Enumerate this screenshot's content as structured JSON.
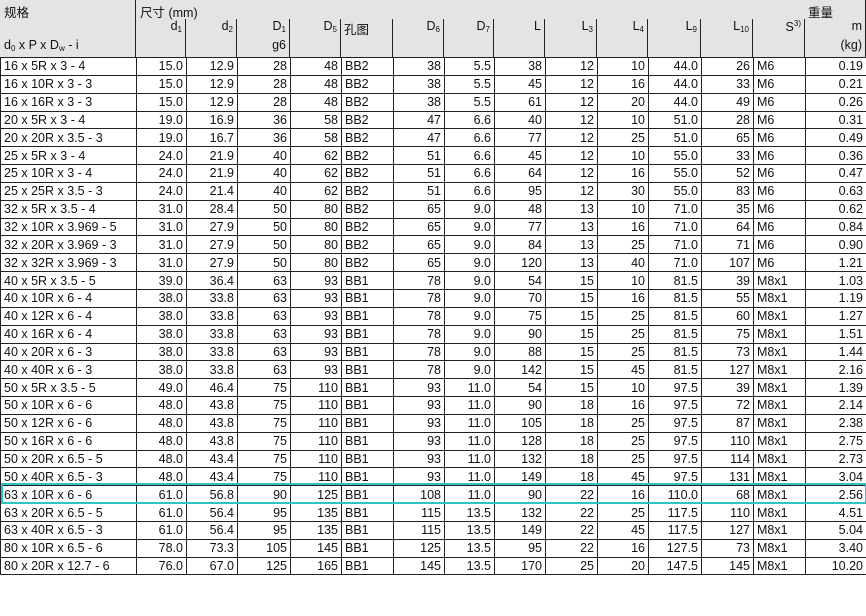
{
  "header": {
    "spec_group": "规格",
    "spec_formula": {
      "parts": [
        "d",
        "0",
        " x P x D",
        "w",
        " - i"
      ]
    },
    "dim_group": "尺寸 (mm)",
    "weight_group": "重量",
    "columns": [
      {
        "label": "d",
        "sub": "1"
      },
      {
        "label": "d",
        "sub": "2"
      },
      {
        "label": "D",
        "sub": "1",
        "below": "g6"
      },
      {
        "label": "D",
        "sub": "5"
      },
      {
        "label": "孔图",
        "left": true
      },
      {
        "label": "D",
        "sub": "6"
      },
      {
        "label": "D",
        "sub": "7"
      },
      {
        "label": "L"
      },
      {
        "label": "L",
        "sub": "3"
      },
      {
        "label": "L",
        "sub": "4"
      },
      {
        "label": "L",
        "sub": "9"
      },
      {
        "label": "L",
        "sub": "10"
      },
      {
        "label": "S",
        "sup": "3)"
      },
      {
        "label": "m",
        "below": "(kg)"
      }
    ]
  },
  "highlight_color": "#2ec4c4",
  "highlighted_row": "63 x 10R x 6 - 6",
  "rows": [
    [
      "16 x 5R x 3 - 4",
      "15.0",
      "12.9",
      "28",
      "48",
      "BB2",
      "38",
      "5.5",
      "38",
      "12",
      "10",
      "44.0",
      "26",
      "M6",
      "0.19"
    ],
    [
      "16 x 10R x 3 - 3",
      "15.0",
      "12.9",
      "28",
      "48",
      "BB2",
      "38",
      "5.5",
      "45",
      "12",
      "16",
      "44.0",
      "33",
      "M6",
      "0.21"
    ],
    [
      "16 x 16R x 3 - 3",
      "15.0",
      "12.9",
      "28",
      "48",
      "BB2",
      "38",
      "5.5",
      "61",
      "12",
      "20",
      "44.0",
      "49",
      "M6",
      "0.26"
    ],
    [
      "20 x 5R x 3 - 4",
      "19.0",
      "16.9",
      "36",
      "58",
      "BB2",
      "47",
      "6.6",
      "40",
      "12",
      "10",
      "51.0",
      "28",
      "M6",
      "0.31"
    ],
    [
      "20 x 20R x 3.5 - 3",
      "19.0",
      "16.7",
      "36",
      "58",
      "BB2",
      "47",
      "6.6",
      "77",
      "12",
      "25",
      "51.0",
      "65",
      "M6",
      "0.49"
    ],
    [
      "25 x 5R x 3 - 4",
      "24.0",
      "21.9",
      "40",
      "62",
      "BB2",
      "51",
      "6.6",
      "45",
      "12",
      "10",
      "55.0",
      "33",
      "M6",
      "0.36"
    ],
    [
      "25 x 10R x 3 - 4",
      "24.0",
      "21.9",
      "40",
      "62",
      "BB2",
      "51",
      "6.6",
      "64",
      "12",
      "16",
      "55.0",
      "52",
      "M6",
      "0.47"
    ],
    [
      "25 x 25R x 3.5 - 3",
      "24.0",
      "21.4",
      "40",
      "62",
      "BB2",
      "51",
      "6.6",
      "95",
      "12",
      "30",
      "55.0",
      "83",
      "M6",
      "0.63"
    ],
    [
      "32 x 5R x 3.5 - 4",
      "31.0",
      "28.4",
      "50",
      "80",
      "BB2",
      "65",
      "9.0",
      "48",
      "13",
      "10",
      "71.0",
      "35",
      "M6",
      "0.62"
    ],
    [
      "32 x 10R x 3.969 - 5",
      "31.0",
      "27.9",
      "50",
      "80",
      "BB2",
      "65",
      "9.0",
      "77",
      "13",
      "16",
      "71.0",
      "64",
      "M6",
      "0.84"
    ],
    [
      "32 x 20R x 3.969 - 3",
      "31.0",
      "27.9",
      "50",
      "80",
      "BB2",
      "65",
      "9.0",
      "84",
      "13",
      "25",
      "71.0",
      "71",
      "M6",
      "0.90"
    ],
    [
      "32 x 32R x 3.969 - 3",
      "31.0",
      "27.9",
      "50",
      "80",
      "BB2",
      "65",
      "9.0",
      "120",
      "13",
      "40",
      "71.0",
      "107",
      "M6",
      "1.21"
    ],
    [
      "40 x 5R x 3.5 - 5",
      "39.0",
      "36.4",
      "63",
      "93",
      "BB1",
      "78",
      "9.0",
      "54",
      "15",
      "10",
      "81.5",
      "39",
      "M8x1",
      "1.03"
    ],
    [
      "40 x 10R x 6 - 4",
      "38.0",
      "33.8",
      "63",
      "93",
      "BB1",
      "78",
      "9.0",
      "70",
      "15",
      "16",
      "81.5",
      "55",
      "M8x1",
      "1.19"
    ],
    [
      "40 x 12R x 6 - 4",
      "38.0",
      "33.8",
      "63",
      "93",
      "BB1",
      "78",
      "9.0",
      "75",
      "15",
      "25",
      "81.5",
      "60",
      "M8x1",
      "1.27"
    ],
    [
      "40 x 16R x 6 - 4",
      "38.0",
      "33.8",
      "63",
      "93",
      "BB1",
      "78",
      "9.0",
      "90",
      "15",
      "25",
      "81.5",
      "75",
      "M8x1",
      "1.51"
    ],
    [
      "40 x 20R x 6 - 3",
      "38.0",
      "33.8",
      "63",
      "93",
      "BB1",
      "78",
      "9.0",
      "88",
      "15",
      "25",
      "81.5",
      "73",
      "M8x1",
      "1.44"
    ],
    [
      "40 x 40R x 6 - 3",
      "38.0",
      "33.8",
      "63",
      "93",
      "BB1",
      "78",
      "9.0",
      "142",
      "15",
      "45",
      "81.5",
      "127",
      "M8x1",
      "2.16"
    ],
    [
      "50 x 5R x 3.5 - 5",
      "49.0",
      "46.4",
      "75",
      "110",
      "BB1",
      "93",
      "11.0",
      "54",
      "15",
      "10",
      "97.5",
      "39",
      "M8x1",
      "1.39"
    ],
    [
      "50 x 10R x 6 - 6",
      "48.0",
      "43.8",
      "75",
      "110",
      "BB1",
      "93",
      "11.0",
      "90",
      "18",
      "16",
      "97.5",
      "72",
      "M8x1",
      "2.14"
    ],
    [
      "50 x 12R x 6 - 6",
      "48.0",
      "43.8",
      "75",
      "110",
      "BB1",
      "93",
      "11.0",
      "105",
      "18",
      "25",
      "97.5",
      "87",
      "M8x1",
      "2.38"
    ],
    [
      "50 x 16R x 6 - 6",
      "48.0",
      "43.8",
      "75",
      "110",
      "BB1",
      "93",
      "11.0",
      "128",
      "18",
      "25",
      "97.5",
      "110",
      "M8x1",
      "2.75"
    ],
    [
      "50 x 20R x 6.5 - 5",
      "48.0",
      "43.4",
      "75",
      "110",
      "BB1",
      "93",
      "11.0",
      "132",
      "18",
      "25",
      "97.5",
      "114",
      "M8x1",
      "2.73"
    ],
    [
      "50 x 40R x 6.5 - 3",
      "48.0",
      "43.4",
      "75",
      "110",
      "BB1",
      "93",
      "11.0",
      "149",
      "18",
      "45",
      "97.5",
      "131",
      "M8x1",
      "3.04"
    ],
    [
      "63 x 10R x 6 - 6",
      "61.0",
      "56.8",
      "90",
      "125",
      "BB1",
      "108",
      "11.0",
      "90",
      "22",
      "16",
      "110.0",
      "68",
      "M8x1",
      "2.56"
    ],
    [
      "63 x 20R x 6.5 - 5",
      "61.0",
      "56.4",
      "95",
      "135",
      "BB1",
      "115",
      "13.5",
      "132",
      "22",
      "25",
      "117.5",
      "110",
      "M8x1",
      "4.51"
    ],
    [
      "63 x 40R x 6.5 - 3",
      "61.0",
      "56.4",
      "95",
      "135",
      "BB1",
      "115",
      "13.5",
      "149",
      "22",
      "45",
      "117.5",
      "127",
      "M8x1",
      "5.04"
    ],
    [
      "80 x 10R x 6.5 - 6",
      "78.0",
      "73.3",
      "105",
      "145",
      "BB1",
      "125",
      "13.5",
      "95",
      "22",
      "16",
      "127.5",
      "73",
      "M8x1",
      "3.40"
    ],
    [
      "80 x 20R x 12.7 - 6",
      "76.0",
      "67.0",
      "125",
      "165",
      "BB1",
      "145",
      "13.5",
      "170",
      "25",
      "20",
      "147.5",
      "145",
      "M8x1",
      "10.20"
    ]
  ]
}
